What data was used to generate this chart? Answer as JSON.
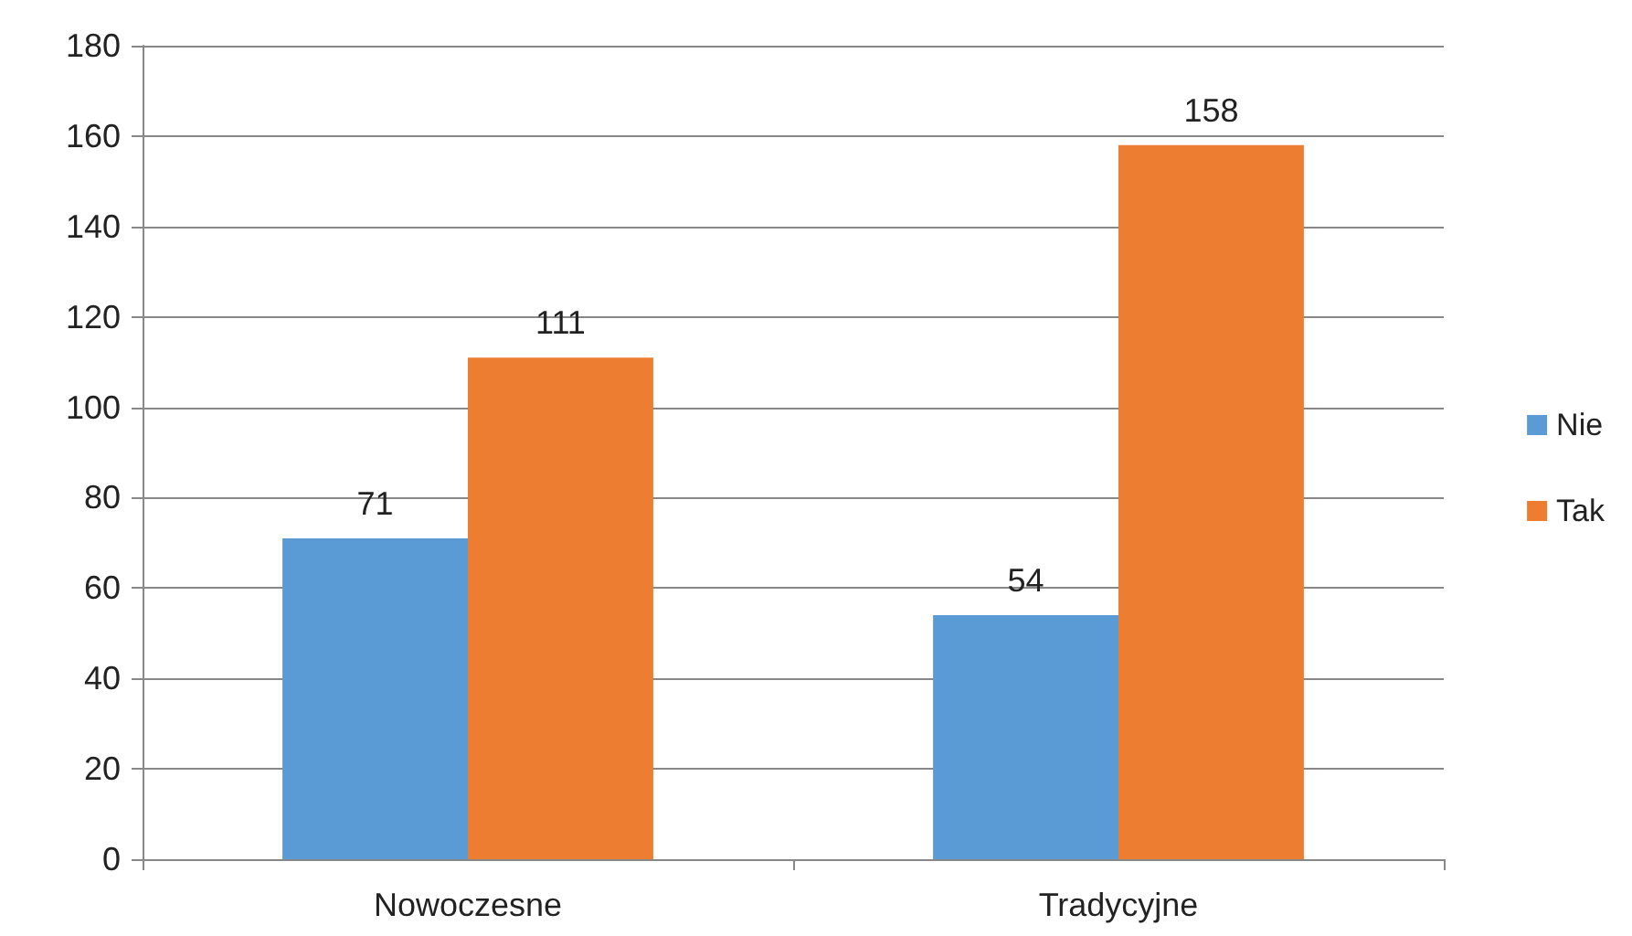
{
  "chart_data": {
    "type": "bar",
    "categories": [
      "Nowoczesne",
      "Tradycyjne"
    ],
    "series": [
      {
        "name": "Nie",
        "color": "#5b9bd5",
        "values": [
          71,
          54
        ]
      },
      {
        "name": "Tak",
        "color": "#ed7d31",
        "values": [
          111,
          158
        ]
      }
    ],
    "ylim": [
      0,
      180
    ],
    "yticks": [
      0,
      20,
      40,
      60,
      80,
      100,
      120,
      140,
      160,
      180
    ],
    "grid": "y",
    "legend": "right",
    "data_labels": true
  }
}
